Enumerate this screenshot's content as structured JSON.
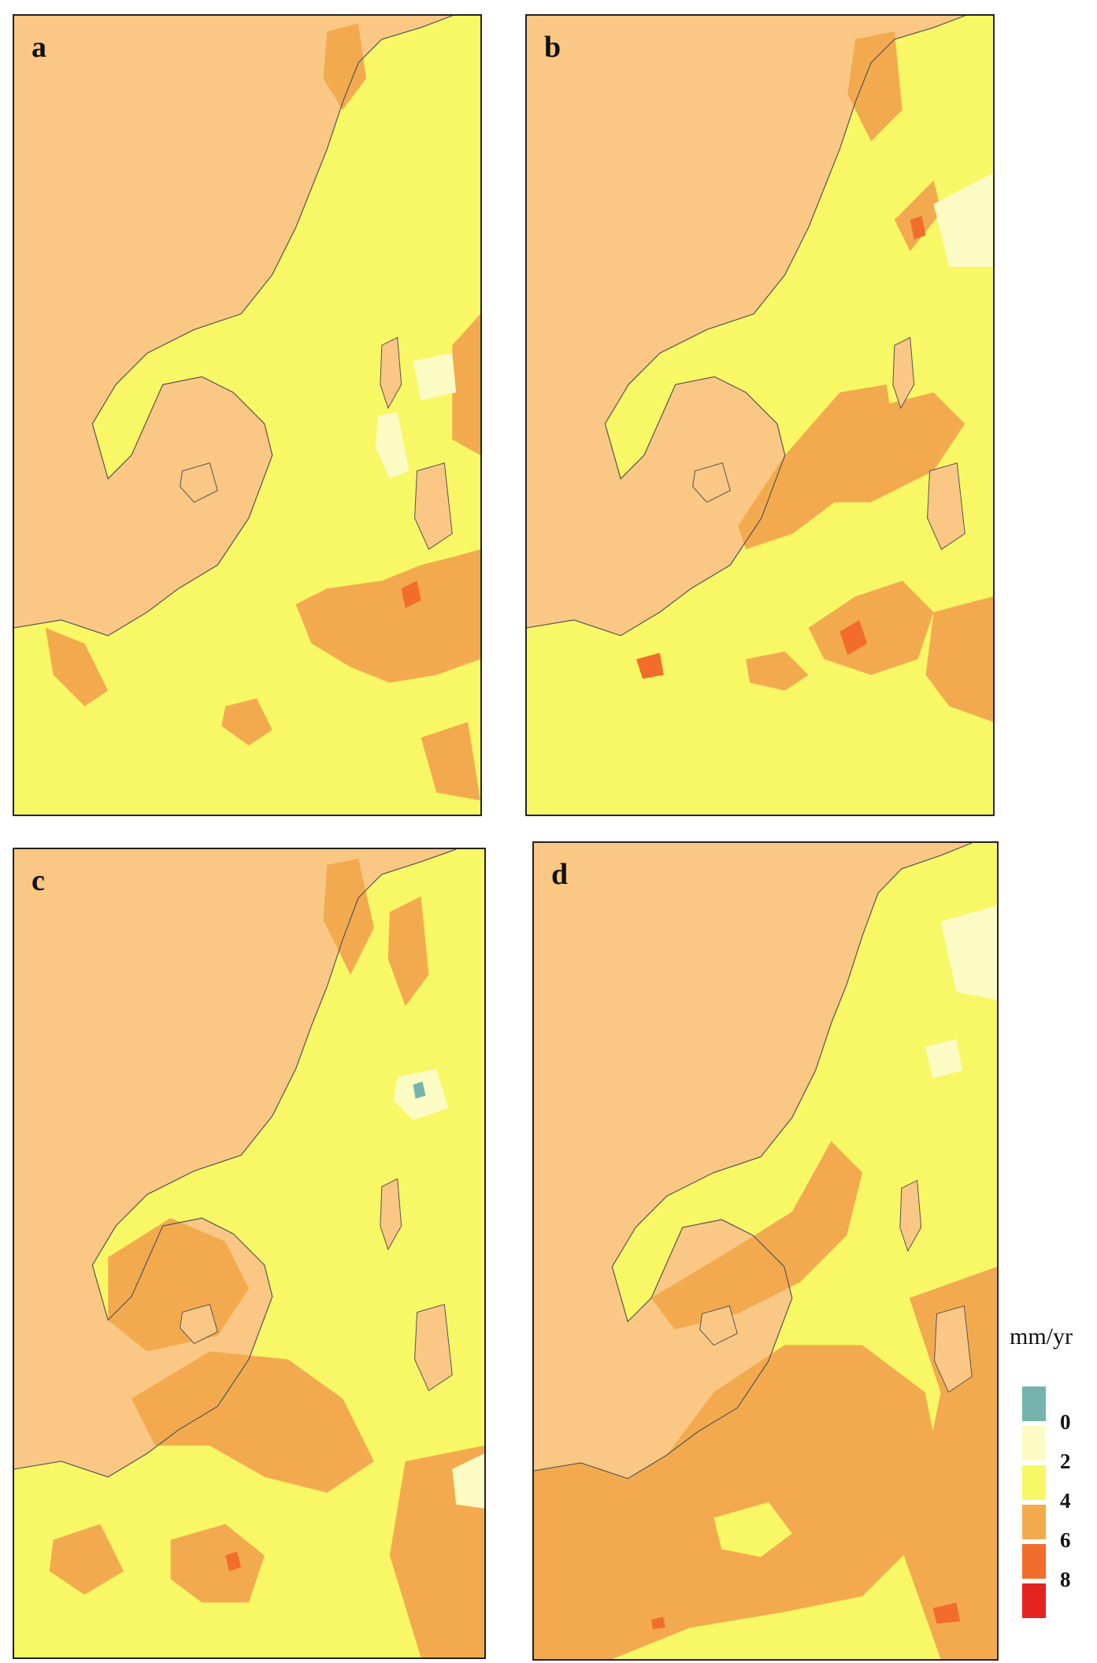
{
  "panels": [
    {
      "id": "a",
      "label": "a"
    },
    {
      "id": "b",
      "label": "b"
    },
    {
      "id": "c",
      "label": "c"
    },
    {
      "id": "d",
      "label": "d"
    }
  ],
  "legend": {
    "unit": "mm/yr",
    "ticks": [
      "0",
      "2",
      "4",
      "6",
      "8"
    ],
    "colors": [
      "#76b3ad",
      "#fdfbc4",
      "#f8f765",
      "#f3aa4f",
      "#f26d2c",
      "#e42420"
    ]
  },
  "colors": {
    "land": "#fac784",
    "sea_low": "#fdfbc4",
    "sea_mid": "#f8f765",
    "sea_high": "#f3aa4f",
    "sea_very_high": "#f26d2c",
    "sea_negative": "#76b3ad",
    "outline": "#555555"
  }
}
